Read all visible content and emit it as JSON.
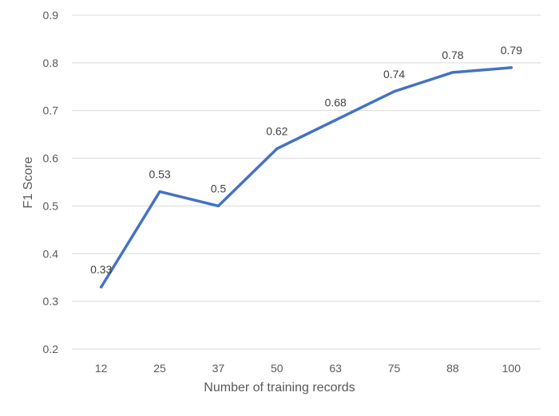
{
  "chart_data": {
    "type": "line",
    "title": "",
    "xlabel": "Number of training records",
    "ylabel": "F1 Score",
    "categories": [
      "12",
      "25",
      "37",
      "50",
      "63",
      "75",
      "88",
      "100"
    ],
    "series": [
      {
        "values": [
          0.33,
          0.53,
          0.5,
          0.62,
          0.68,
          0.74,
          0.78,
          0.79
        ],
        "labels": [
          "0.33",
          "0.53",
          "0.5",
          "0.62",
          "0.68",
          "0.74",
          "0.78",
          "0.79"
        ],
        "color": "#4472c4"
      }
    ],
    "yticks": [
      "0.2",
      "0.3",
      "0.4",
      "0.5",
      "0.6",
      "0.7",
      "0.8",
      "0.9"
    ],
    "ylim": [
      0.2,
      0.9
    ],
    "grid": true,
    "legend": "none"
  }
}
